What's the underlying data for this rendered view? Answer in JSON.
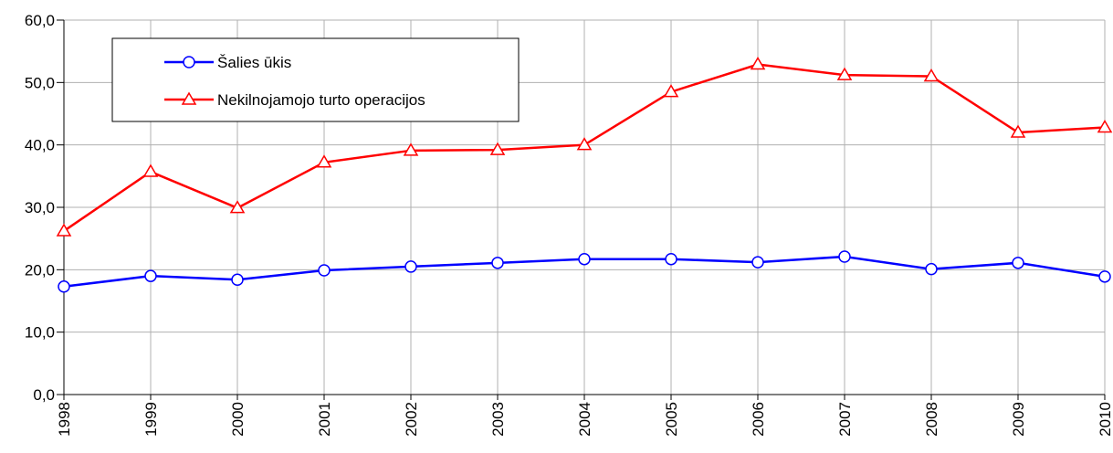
{
  "chart_data": {
    "type": "line",
    "x": [
      1998,
      1999,
      2000,
      2001,
      2002,
      2003,
      2004,
      2005,
      2006,
      2007,
      2008,
      2009,
      2010
    ],
    "series": [
      {
        "name": "Šalies ūkis",
        "color": "#0000ff",
        "marker": "circle",
        "values": [
          17.3,
          19.0,
          18.4,
          19.9,
          20.5,
          21.1,
          21.7,
          21.7,
          21.2,
          22.1,
          20.1,
          21.1,
          18.9
        ]
      },
      {
        "name": "Nekilnojamojo turto operacijos",
        "color": "#ff0000",
        "marker": "triangle",
        "values": [
          26.2,
          35.7,
          29.9,
          37.2,
          39.1,
          39.2,
          40.0,
          48.5,
          52.9,
          51.2,
          51.0,
          42.0,
          42.8
        ]
      }
    ],
    "xlim": [
      1998,
      2010
    ],
    "xticks": [
      1998,
      1999,
      2000,
      2001,
      2002,
      2003,
      2004,
      2005,
      2006,
      2007,
      2008,
      2009,
      2010
    ],
    "ylim": [
      0,
      60
    ],
    "yticks": [
      {
        "value": 0,
        "label": "0,0"
      },
      {
        "value": 10,
        "label": "10,0"
      },
      {
        "value": 20,
        "label": "20,0"
      },
      {
        "value": 30,
        "label": "30,0"
      },
      {
        "value": 40,
        "label": "40,0"
      },
      {
        "value": 50,
        "label": "50,0"
      },
      {
        "value": 60,
        "label": "60,0"
      }
    ],
    "grid": true,
    "legend": "upper left"
  }
}
